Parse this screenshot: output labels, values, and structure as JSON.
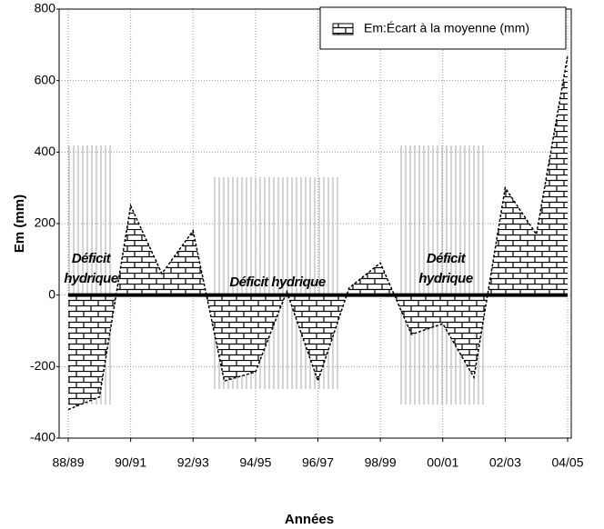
{
  "chart_data": {
    "type": "area",
    "categories": [
      "88/89",
      null,
      "90/91",
      null,
      "92/93",
      null,
      "94/95",
      null,
      "96/97",
      null,
      "98/99",
      null,
      "00/01",
      null,
      "02/03",
      null,
      "04/05"
    ],
    "series": [
      {
        "name": "Em:Écart à la moyenne (mm)",
        "color": "#000000",
        "values": [
          -320,
          -285,
          250,
          60,
          180,
          -240,
          -215,
          10,
          -240,
          20,
          90,
          -110,
          -80,
          -230,
          300,
          170,
          670
        ]
      }
    ],
    "ylim": [
      -400,
      800
    ],
    "yticks": [
      -400,
      -200,
      0,
      200,
      400,
      600,
      800
    ],
    "xlabel": "Années",
    "ylabel": "Em (mm)",
    "grid": true,
    "legend": "upper right",
    "annotations": [
      "Déficit hydrique",
      "Déficit hydrique",
      "Déficit hydrique"
    ]
  }
}
